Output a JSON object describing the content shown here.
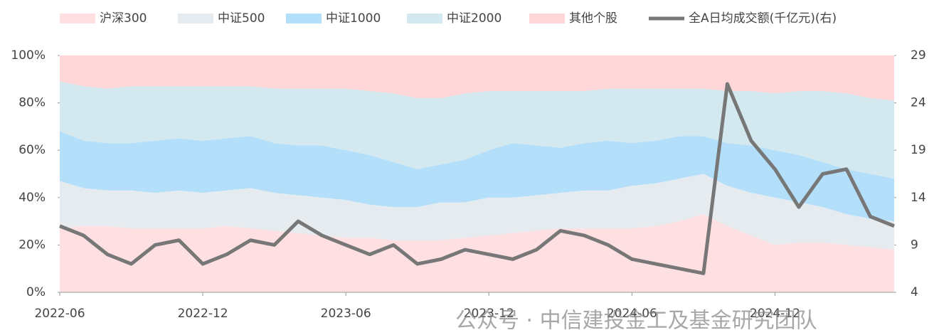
{
  "chart_data": {
    "type": "stacked-area-line",
    "categories": [
      "2022-06",
      null,
      null,
      null,
      null,
      null,
      "2022-12",
      null,
      null,
      null,
      null,
      null,
      "2023-06",
      null,
      null,
      null,
      null,
      null,
      "2023-12",
      null,
      null,
      null,
      null,
      null,
      "2024-06",
      null,
      null,
      null,
      null,
      null,
      "2024-12",
      null,
      null,
      null,
      null,
      null
    ],
    "series": [
      {
        "name": "沪深300",
        "color": "#ffe0e2",
        "values": [
          27,
          28,
          28,
          27,
          27,
          27,
          27,
          28,
          27,
          26,
          25,
          24,
          23,
          23,
          22,
          22,
          22,
          23,
          24,
          25,
          26,
          27,
          27,
          27,
          27,
          28,
          30,
          33,
          28,
          24,
          20,
          21,
          21,
          20,
          19,
          18
        ]
      },
      {
        "name": "中证500",
        "color": "#e6ebef",
        "values": [
          20,
          16,
          15,
          16,
          15,
          16,
          15,
          15,
          17,
          16,
          16,
          16,
          16,
          14,
          14,
          14,
          16,
          15,
          16,
          15,
          15,
          15,
          16,
          16,
          18,
          18,
          18,
          17,
          17,
          18,
          20,
          17,
          15,
          13,
          12,
          12
        ]
      },
      {
        "name": "中证1000",
        "color": "#b4dffa",
        "values": [
          21,
          20,
          20,
          20,
          22,
          22,
          22,
          22,
          22,
          21,
          21,
          22,
          21,
          21,
          19,
          16,
          16,
          18,
          20,
          23,
          21,
          19,
          20,
          21,
          18,
          18,
          18,
          16,
          18,
          20,
          20,
          20,
          19,
          19,
          19,
          18
        ]
      },
      {
        "name": "中证2000",
        "color": "#d3e9ef",
        "values": [
          21,
          23,
          23,
          24,
          23,
          22,
          23,
          22,
          21,
          23,
          24,
          24,
          26,
          27,
          29,
          30,
          28,
          28,
          25,
          22,
          23,
          24,
          22,
          22,
          23,
          22,
          20,
          20,
          22,
          23,
          24,
          27,
          30,
          32,
          32,
          33
        ]
      },
      {
        "name": "其他个股",
        "color": "#ffd7d9",
        "values": [
          11,
          13,
          14,
          13,
          13,
          13,
          13,
          13,
          13,
          14,
          14,
          14,
          14,
          15,
          16,
          18,
          18,
          16,
          15,
          15,
          15,
          15,
          15,
          14,
          14,
          14,
          14,
          14,
          15,
          15,
          16,
          15,
          15,
          16,
          18,
          19
        ]
      },
      {
        "name": "全A日均成交额(千亿元)(右)",
        "color": "#777777",
        "axis": "y2",
        "line": true,
        "values": [
          11,
          10,
          8,
          7,
          9,
          9.5,
          7,
          8,
          9.5,
          9,
          11.5,
          10,
          9,
          8,
          9,
          7,
          7.5,
          8.5,
          8,
          7.5,
          8.5,
          10.5,
          10,
          9,
          7.5,
          7,
          6.5,
          6,
          26,
          20,
          17,
          13,
          16.5,
          17,
          12,
          11
        ]
      }
    ],
    "ylim": [
      0,
      100
    ],
    "yticks": [
      {
        "value": 0,
        "label": "0%"
      },
      {
        "value": 20,
        "label": "20%"
      },
      {
        "value": 40,
        "label": "40%"
      },
      {
        "value": 60,
        "label": "60%"
      },
      {
        "value": 80,
        "label": "80%"
      },
      {
        "value": 100,
        "label": "100%"
      }
    ],
    "y2lim": [
      4,
      29
    ],
    "y2ticks": [
      4,
      9,
      14,
      19,
      24,
      29
    ],
    "watermark": "公众号 · 中信建投金工及基金研究团队"
  }
}
